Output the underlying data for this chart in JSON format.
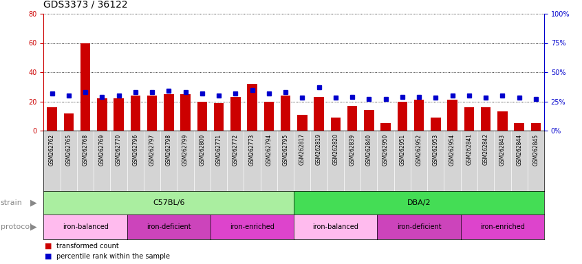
{
  "title": "GDS3373 / 36122",
  "samples": [
    "GSM262762",
    "GSM262765",
    "GSM262768",
    "GSM262769",
    "GSM262770",
    "GSM262796",
    "GSM262797",
    "GSM262798",
    "GSM262799",
    "GSM262800",
    "GSM262771",
    "GSM262772",
    "GSM262773",
    "GSM262794",
    "GSM262795",
    "GSM262817",
    "GSM262819",
    "GSM262820",
    "GSM262839",
    "GSM262840",
    "GSM262950",
    "GSM262951",
    "GSM262952",
    "GSM262953",
    "GSM262954",
    "GSM262841",
    "GSM262842",
    "GSM262843",
    "GSM262844",
    "GSM262845"
  ],
  "transformed_count": [
    16,
    12,
    60,
    22,
    22,
    24,
    24,
    25,
    25,
    20,
    19,
    23,
    32,
    20,
    24,
    11,
    23,
    9,
    17,
    14,
    5,
    20,
    21,
    9,
    21,
    16,
    16,
    13,
    5,
    5
  ],
  "percentile_rank": [
    32,
    30,
    33,
    29,
    30,
    33,
    33,
    34,
    33,
    32,
    30,
    32,
    35,
    32,
    33,
    28,
    37,
    28,
    29,
    27,
    27,
    29,
    29,
    28,
    30,
    30,
    28,
    30,
    28,
    27
  ],
  "bar_color": "#cc0000",
  "dot_color": "#0000cc",
  "ylim_left": [
    0,
    80
  ],
  "ylim_right": [
    0,
    100
  ],
  "yticks_left": [
    0,
    20,
    40,
    60,
    80
  ],
  "yticks_right": [
    0,
    25,
    50,
    75,
    100
  ],
  "ytick_labels_right": [
    "0%",
    "25%",
    "50%",
    "75%",
    "100%"
  ],
  "strain_groups": [
    {
      "label": "C57BL/6",
      "start": 0,
      "end": 15,
      "color": "#aaeea0"
    },
    {
      "label": "DBA/2",
      "start": 15,
      "end": 30,
      "color": "#44dd55"
    }
  ],
  "protocol_groups": [
    {
      "label": "iron-balanced",
      "start": 0,
      "end": 5,
      "color": "#ffbbee"
    },
    {
      "label": "iron-deficient",
      "start": 5,
      "end": 10,
      "color": "#cc44bb"
    },
    {
      "label": "iron-enriched",
      "start": 10,
      "end": 15,
      "color": "#dd44cc"
    },
    {
      "label": "iron-balanced",
      "start": 15,
      "end": 20,
      "color": "#ffbbee"
    },
    {
      "label": "iron-deficient",
      "start": 20,
      "end": 25,
      "color": "#cc44bb"
    },
    {
      "label": "iron-enriched",
      "start": 25,
      "end": 30,
      "color": "#dd44cc"
    }
  ],
  "bg_color": "#ffffff",
  "xtick_bg": "#d4d4d4",
  "grid_color": "#000000",
  "title_fontsize": 10,
  "ytick_fontsize": 7,
  "xtick_fontsize": 5.5,
  "label_fontsize": 8,
  "legend_fontsize": 7,
  "row_label_fontsize": 8,
  "row_label_color": "#888888"
}
